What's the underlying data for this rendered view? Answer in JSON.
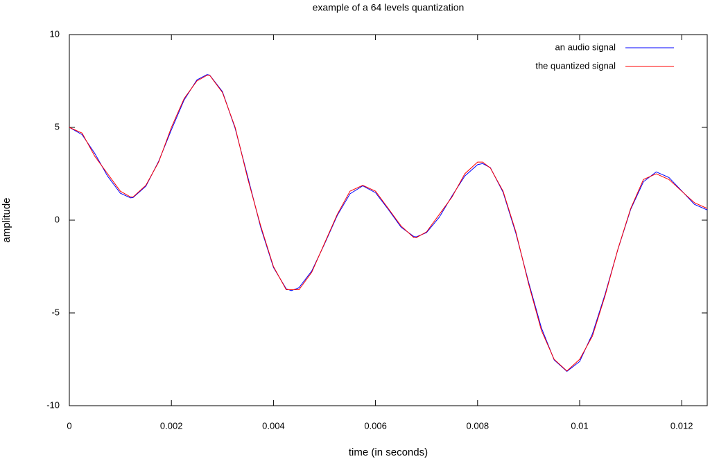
{
  "chart_data": {
    "type": "line",
    "title": "example of a 64 levels quantization",
    "x_label": "time (in seconds)",
    "y_label": "amplitude",
    "x": [
      0,
      0.00025,
      0.0005,
      0.00075,
      0.001,
      0.0012,
      0.00125,
      0.0015,
      0.00175,
      0.002,
      0.00225,
      0.0025,
      0.0027,
      0.00275,
      0.003,
      0.00325,
      0.0035,
      0.00375,
      0.004,
      0.00425,
      0.00435,
      0.0045,
      0.00475,
      0.005,
      0.00525,
      0.0055,
      0.00575,
      0.006,
      0.00625,
      0.0065,
      0.00675,
      0.0068,
      0.007,
      0.00725,
      0.0075,
      0.00775,
      0.008,
      0.0081,
      0.00825,
      0.0085,
      0.00875,
      0.009,
      0.00925,
      0.0095,
      0.00975,
      0.01,
      0.01025,
      0.0105,
      0.01075,
      0.011,
      0.01125,
      0.0115,
      0.01175,
      0.012,
      0.01225,
      0.0125
    ],
    "series": [
      {
        "name": "an audio signal",
        "color": "#0000ff",
        "values": [
          5,
          4.61,
          3.59,
          2.37,
          1.45,
          1.2,
          1.22,
          1.83,
          3.17,
          4.87,
          6.48,
          7.56,
          7.85,
          7.82,
          6.93,
          4.94,
          2.3,
          -0.39,
          -2.55,
          -3.7,
          -3.8,
          -3.64,
          -2.74,
          -1.29,
          0.25,
          1.42,
          1.85,
          1.48,
          0.58,
          -0.38,
          -0.88,
          -0.9,
          -0.67,
          0.16,
          1.31,
          2.38,
          2.99,
          3.05,
          2.83,
          1.5,
          -0.71,
          -3.35,
          -5.8,
          -7.53,
          -8.15,
          -7.62,
          -6.13,
          -3.98,
          -1.57,
          0.58,
          2.07,
          2.6,
          2.3,
          1.58,
          0.85,
          0.55
        ]
      },
      {
        "name": "the quantized signal",
        "color": "#ff0000",
        "values": [
          5,
          4.69,
          3.44,
          2.5,
          1.56,
          1.25,
          1.25,
          1.88,
          3.13,
          5,
          6.56,
          7.5,
          7.81,
          7.81,
          6.88,
          5,
          2.19,
          -0.31,
          -2.5,
          -3.75,
          -3.75,
          -3.75,
          -2.81,
          -1.25,
          0.31,
          1.56,
          1.88,
          1.56,
          0.63,
          -0.31,
          -0.94,
          -0.94,
          -0.63,
          0.31,
          1.25,
          2.5,
          3.13,
          3.13,
          2.81,
          1.56,
          -0.63,
          -3.44,
          -5.94,
          -7.5,
          -8.13,
          -7.5,
          -6.25,
          -4.06,
          -1.56,
          0.63,
          2.19,
          2.5,
          2.19,
          1.56,
          0.94,
          0.63
        ]
      }
    ],
    "xlim": [
      0,
      0.0125
    ],
    "xticks": [
      0,
      0.002,
      0.004,
      0.006,
      0.008,
      0.01,
      0.012
    ],
    "ylim": [
      -10,
      10
    ],
    "yticks": [
      -10,
      -5,
      0,
      5,
      10
    ],
    "grid": false,
    "legend": "top-right"
  }
}
